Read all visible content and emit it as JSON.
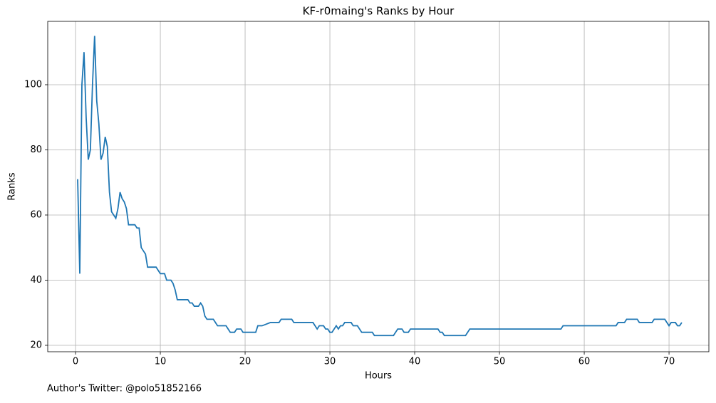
{
  "chart_data": {
    "type": "line",
    "title": "KF-r0maing's Ranks by Hour",
    "x_label": "Hours",
    "y_label": "Ranks",
    "footnote": "Author's Twitter: @polo51852166",
    "x": [
      0.25,
      0.5,
      0.75,
      1.0,
      1.25,
      1.5,
      1.75,
      2.0,
      2.25,
      2.5,
      2.75,
      3.0,
      3.25,
      3.5,
      3.75,
      4.0,
      4.25,
      4.5,
      4.75,
      5.0,
      5.25,
      5.5,
      5.75,
      6.0,
      6.25,
      7.0,
      7.25,
      7.5,
      7.75,
      8.0,
      8.25,
      8.5,
      9.5,
      10.0,
      10.5,
      10.75,
      11.25,
      11.5,
      11.75,
      12.0,
      13.25,
      13.5,
      13.75,
      14.0,
      14.5,
      14.75,
      15.0,
      15.25,
      15.5,
      16.25,
      16.75,
      17.75,
      18.0,
      18.25,
      18.75,
      19.0,
      19.5,
      19.75,
      21.25,
      21.5,
      22.0,
      23.0,
      24.0,
      24.25,
      25.5,
      25.75,
      28.0,
      28.25,
      28.5,
      28.75,
      29.25,
      29.5,
      29.75,
      30.0,
      30.25,
      30.75,
      31.0,
      31.25,
      31.5,
      31.75,
      32.5,
      32.75,
      33.25,
      33.75,
      35.0,
      35.25,
      37.5,
      38.0,
      38.5,
      38.75,
      39.25,
      39.5,
      42.75,
      43.0,
      43.25,
      43.5,
      46.0,
      46.5,
      57.25,
      57.5,
      63.75,
      64.0,
      64.75,
      65.0,
      66.25,
      66.5,
      68.0,
      68.25,
      69.5,
      69.75,
      70.0,
      70.25,
      70.75,
      71.0,
      71.25,
      71.5
    ],
    "series": [
      {
        "name": "Ranks",
        "color": "#1f77b4",
        "values": [
          71,
          42,
          100,
          110,
          90,
          77,
          80,
          100,
          115,
          95,
          88,
          77,
          79,
          84,
          81,
          67,
          61,
          60,
          59,
          62,
          67,
          65,
          64,
          62,
          57,
          57,
          56,
          56,
          50,
          49,
          48,
          44,
          44,
          42,
          42,
          40,
          40,
          39,
          37,
          34,
          34,
          33,
          33,
          32,
          32,
          33,
          32,
          29,
          28,
          28,
          26,
          26,
          25,
          24,
          24,
          25,
          25,
          24,
          24,
          26,
          26,
          27,
          27,
          28,
          28,
          27,
          27,
          26,
          25,
          26,
          26,
          25,
          25,
          24,
          24,
          26,
          25,
          26,
          26,
          27,
          27,
          26,
          26,
          24,
          24,
          23,
          23,
          25,
          25,
          24,
          24,
          25,
          25,
          24,
          24,
          23,
          23,
          25,
          25,
          26,
          26,
          27,
          27,
          28,
          28,
          27,
          27,
          28,
          28,
          27,
          26,
          27,
          27,
          26,
          26,
          27
        ]
      }
    ],
    "xlim": [
      -3.28,
      74.7
    ],
    "ylim": [
      18.03,
      119.45
    ],
    "xticks": [
      0,
      10,
      20,
      30,
      40,
      50,
      60,
      70
    ],
    "yticks": [
      20,
      40,
      60,
      80,
      100
    ],
    "grid": true
  }
}
